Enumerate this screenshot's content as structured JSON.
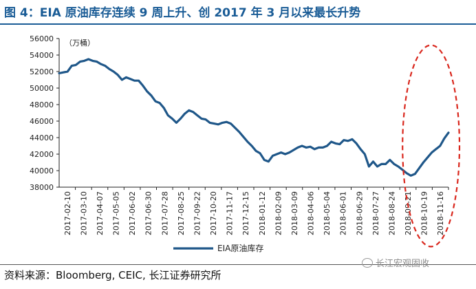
{
  "title": "图 4：EIA 原油库存连续 9 周上升、创 2017 年 3 月以来最长升势",
  "source": "资料来源：Bloomberg, CEIC, 长江证券研究所",
  "watermark": "长江宏观固收",
  "watermark_icon": "wechat-icon",
  "colors": {
    "title": "#1a5c96",
    "line": "#1f5789",
    "highlight": "#d9261c"
  },
  "chart_data": {
    "type": "line",
    "title": "",
    "unit_label": "（万桶）",
    "xlabel": "",
    "ylabel": "",
    "ylim": [
      38000,
      56000
    ],
    "yticks": [
      38000,
      40000,
      42000,
      44000,
      46000,
      48000,
      50000,
      52000,
      54000,
      56000
    ],
    "xtick_labels": [
      "2017-02-10",
      "2017-03-10",
      "2017-04-07",
      "2017-05-05",
      "2017-06-02",
      "2017-06-30",
      "2017-07-28",
      "2017-08-25",
      "2017-09-22",
      "2017-10-20",
      "2017-11-17",
      "2017-12-15",
      "2018-01-12",
      "2018-02-09",
      "2018-03-09",
      "2018-04-06",
      "2018-05-04",
      "2018-06-01",
      "2018-06-29",
      "2018-07-27",
      "2018-08-24",
      "2018-09-21",
      "2018-10-19",
      "2018-11-16"
    ],
    "grid": false,
    "legend_position": "bottom",
    "annotation": "dashed red ellipse around last 9 weeks",
    "series": [
      {
        "name": "EIA原油库存",
        "values": [
          51800,
          51900,
          52000,
          52700,
          52800,
          53200,
          53300,
          53500,
          53300,
          53200,
          52900,
          52700,
          52300,
          52000,
          51600,
          51000,
          51300,
          51100,
          50900,
          50900,
          50300,
          49600,
          49100,
          48400,
          48200,
          47600,
          46700,
          46300,
          45800,
          46300,
          46900,
          47300,
          47100,
          46700,
          46300,
          46200,
          45800,
          45700,
          45600,
          45800,
          45900,
          45700,
          45200,
          44700,
          44100,
          43500,
          43000,
          42400,
          42100,
          41300,
          41100,
          41800,
          42000,
          42200,
          42000,
          42200,
          42500,
          42800,
          43000,
          42800,
          42900,
          42600,
          42800,
          42800,
          43000,
          43500,
          43300,
          43200,
          43700,
          43600,
          43800,
          43300,
          42600,
          42000,
          40500,
          41100,
          40500,
          40800,
          40800,
          41300,
          40800,
          40500,
          40100,
          39700,
          39400,
          39600,
          40300,
          41000,
          41600,
          42200,
          42600,
          43000,
          43900,
          44600
        ]
      }
    ]
  }
}
